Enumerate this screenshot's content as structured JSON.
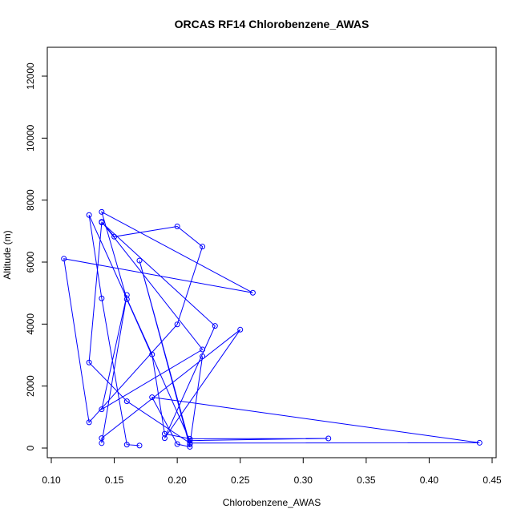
{
  "chart_data": {
    "type": "scatter",
    "title": "ORCAS RF14 Chlorobenzene_AWAS",
    "xlabel": "Chlorobenzene_AWAS",
    "ylabel": "Altitude (m)",
    "xlim": [
      0.1,
      0.45
    ],
    "ylim": [
      0,
      12000
    ],
    "xticks": [
      "0.10",
      "0.15",
      "0.20",
      "0.25",
      "0.30",
      "0.35",
      "0.40",
      "0.45"
    ],
    "xtick_values": [
      0.1,
      0.15,
      0.2,
      0.25,
      0.3,
      0.35,
      0.4,
      0.45
    ],
    "yticks": [
      "0",
      "2000",
      "4000",
      "6000",
      "8000",
      "10000",
      "12000"
    ],
    "ytick_values": [
      0,
      2000,
      4000,
      6000,
      8000,
      10000,
      12000
    ],
    "grid": false,
    "color": "#0000ff",
    "series": [
      {
        "points": [
          {
            "x": 0.17,
            "y": 80
          },
          {
            "x": 0.16,
            "y": 110
          },
          {
            "x": 0.14,
            "y": 4830
          },
          {
            "x": 0.13,
            "y": 7520
          },
          {
            "x": 0.18,
            "y": 3020
          },
          {
            "x": 0.19,
            "y": 460
          },
          {
            "x": 0.21,
            "y": 300
          },
          {
            "x": 0.32,
            "y": 310
          },
          {
            "x": 0.21,
            "y": 240
          },
          {
            "x": 0.16,
            "y": 4800
          },
          {
            "x": 0.14,
            "y": 7620
          },
          {
            "x": 0.26,
            "y": 5010
          },
          {
            "x": 0.11,
            "y": 6110
          },
          {
            "x": 0.13,
            "y": 830
          },
          {
            "x": 0.2,
            "y": 3990
          },
          {
            "x": 0.22,
            "y": 6500
          },
          {
            "x": 0.2,
            "y": 7150
          },
          {
            "x": 0.15,
            "y": 6820
          },
          {
            "x": 0.14,
            "y": 7300
          },
          {
            "x": 0.22,
            "y": 3180
          },
          {
            "x": 0.14,
            "y": 1250
          },
          {
            "x": 0.16,
            "y": 4940
          },
          {
            "x": 0.14,
            "y": 160
          },
          {
            "x": 0.14,
            "y": 320
          },
          {
            "x": 0.25,
            "y": 3820
          },
          {
            "x": 0.19,
            "y": 320
          },
          {
            "x": 0.23,
            "y": 3940
          },
          {
            "x": 0.14,
            "y": 7280
          },
          {
            "x": 0.13,
            "y": 2760
          },
          {
            "x": 0.16,
            "y": 1510
          },
          {
            "x": 0.21,
            "y": 160
          },
          {
            "x": 0.44,
            "y": 170
          },
          {
            "x": 0.18,
            "y": 1640
          },
          {
            "x": 0.2,
            "y": 130
          },
          {
            "x": 0.21,
            "y": 40
          },
          {
            "x": 0.17,
            "y": 6050
          },
          {
            "x": 0.21,
            "y": 120
          },
          {
            "x": 0.22,
            "y": 2960
          }
        ]
      }
    ]
  }
}
